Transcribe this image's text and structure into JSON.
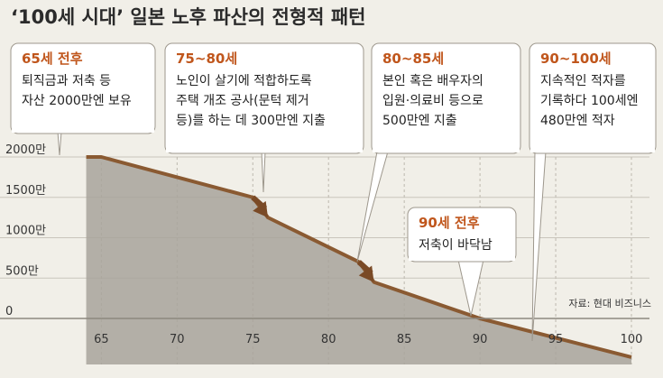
{
  "chart_data": {
    "type": "area",
    "title": "‘100세 시대’ 일본 노후 파산의 전형적 패턴",
    "x": [
      64,
      65,
      75,
      76,
      82,
      83,
      90,
      100
    ],
    "y": [
      2000,
      2000,
      1500,
      1250,
      700,
      450,
      0,
      -480
    ],
    "xlim": [
      62,
      100
    ],
    "ylim": [
      -500,
      2000
    ],
    "x_ticks": [
      "65",
      "70",
      "75",
      "80",
      "85",
      "90",
      "95",
      "100"
    ],
    "x_tick_values": [
      65,
      70,
      75,
      80,
      85,
      90,
      95,
      100
    ],
    "y_ticks": [
      "2000만",
      "1500만",
      "1000만",
      "500만",
      "0"
    ],
    "y_tick_values": [
      2000,
      1500,
      1000,
      500,
      0
    ],
    "grid": true,
    "source": "자료: 현대 비즈니스",
    "colors": {
      "line": "#8a5a32",
      "fill": "#a8a39b",
      "arrow": "#7a4a26",
      "accent_text": "#c0561c",
      "background": "#f1efe8"
    },
    "annotations": [
      {
        "id": "ann-65",
        "heading": "65세 전후",
        "lines": [
          "퇴직금과 저축 등",
          "자산 2000만엔 보유"
        ],
        "target": [
          65,
          2000
        ]
      },
      {
        "id": "ann-75-80",
        "heading": "75~80세",
        "lines": [
          "노인이 살기에 적합하도록",
          "주택 개조 공사(문턱 제거",
          "등)를 하는 데 300만엔 지출"
        ],
        "target": [
          74.4,
          1570
        ]
      },
      {
        "id": "ann-80-85",
        "heading": "80~85세",
        "lines": [
          "본인 혹은 배우자의",
          "입원·의료비 등으로",
          "500만엔 지출"
        ],
        "target": [
          82.2,
          760
        ]
      },
      {
        "id": "ann-90-100",
        "heading": "90~100세",
        "lines": [
          "지속적인 적자를",
          "기록하다 100세엔",
          "480만엔 적자"
        ],
        "target": [
          94,
          -300
        ]
      },
      {
        "id": "ann-90",
        "heading": "90세 전후",
        "lines": [
          "저축이 바닥남"
        ],
        "target": [
          90,
          0
        ]
      }
    ],
    "drop_arrows": [
      {
        "from": [
          75,
          1500
        ],
        "to": [
          76,
          1250
        ]
      },
      {
        "from": [
          82,
          700
        ],
        "to": [
          83,
          450
        ]
      }
    ]
  }
}
